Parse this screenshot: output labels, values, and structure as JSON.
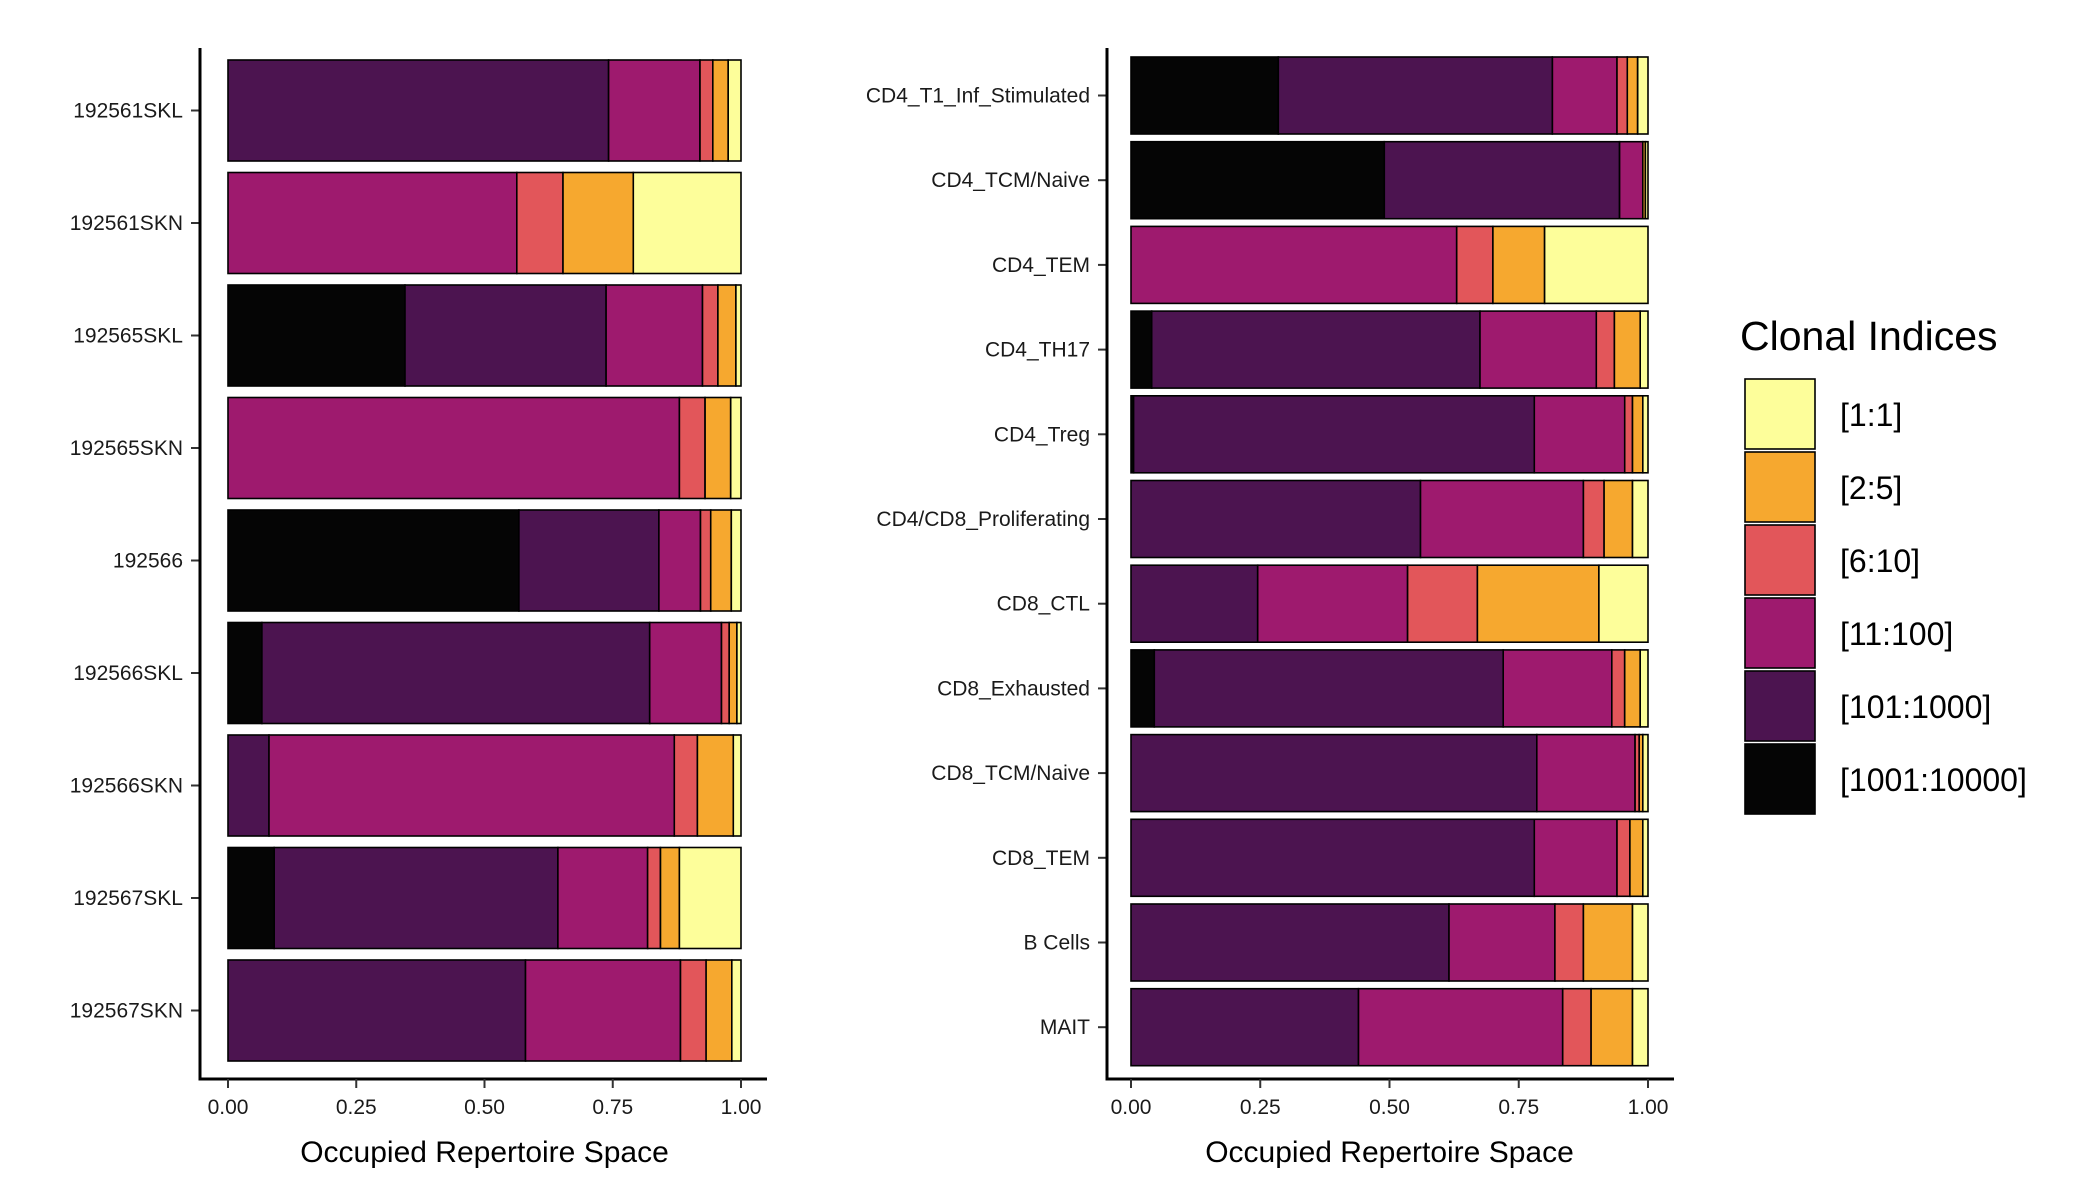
{
  "colors": {
    "[1:1]": "#FDFE9A",
    "[2:5]": "#F6A82F",
    "[6:10]": "#E2565A",
    "[11:100]": "#9E1A6E",
    "[101:1000]": "#4C1450",
    "[1001:10000]": "#050505"
  },
  "legend": {
    "title": "Clonal Indices",
    "items": [
      "[1:1]",
      "[2:5]",
      "[6:10]",
      "[11:100]",
      "[101:1000]",
      "[1001:10000]"
    ]
  },
  "chart_data": [
    {
      "type": "bar",
      "orientation": "horizontal",
      "stacked": true,
      "xlabel": "Occupied Repertoire Space",
      "ylabel": "",
      "xlim": [
        0,
        1
      ],
      "xticks": [
        "0.00",
        "0.25",
        "0.50",
        "0.75",
        "1.00"
      ],
      "categories": [
        "192561SKL",
        "192561SKN",
        "192565SKL",
        "192565SKN",
        "192566",
        "192566SKL",
        "192566SKN",
        "192567SKL",
        "192567SKN"
      ],
      "series": [
        {
          "name": "[1001:10000]",
          "values": [
            0.0,
            0.0,
            0.345,
            0.0,
            0.567,
            0.066,
            0.0,
            0.09,
            0.0
          ]
        },
        {
          "name": "[101:1000]",
          "values": [
            0.742,
            0.0,
            0.392,
            0.0,
            0.273,
            0.756,
            0.08,
            0.553,
            0.58
          ]
        },
        {
          "name": "[11:100]",
          "values": [
            0.178,
            0.563,
            0.188,
            0.88,
            0.081,
            0.14,
            0.79,
            0.175,
            0.302
          ]
        },
        {
          "name": "[6:10]",
          "values": [
            0.025,
            0.09,
            0.03,
            0.05,
            0.02,
            0.015,
            0.045,
            0.025,
            0.05
          ]
        },
        {
          "name": "[2:5]",
          "values": [
            0.03,
            0.137,
            0.035,
            0.05,
            0.04,
            0.015,
            0.07,
            0.037,
            0.05
          ]
        },
        {
          "name": "[1:1]",
          "values": [
            0.025,
            0.21,
            0.01,
            0.02,
            0.019,
            0.008,
            0.015,
            0.12,
            0.018
          ]
        }
      ]
    },
    {
      "type": "bar",
      "orientation": "horizontal",
      "stacked": true,
      "xlabel": "Occupied Repertoire Space",
      "ylabel": "",
      "xlim": [
        0,
        1
      ],
      "xticks": [
        "0.00",
        "0.25",
        "0.50",
        "0.75",
        "1.00"
      ],
      "categories": [
        "CD4_T1_Inf_Stimulated",
        "CD4_TCM/Naive",
        "CD4_TEM",
        "CD4_TH17",
        "CD4_Treg",
        "CD4/CD8_Proliferating",
        "CD8_CTL",
        "CD8_Exhausted",
        "CD8_TCM/Naive",
        "CD8_TEM",
        "B Cells",
        "MAIT"
      ],
      "series": [
        {
          "name": "[1001:10000]",
          "values": [
            0.285,
            0.49,
            0.0,
            0.04,
            0.005,
            0.0,
            0.0,
            0.045,
            0.0,
            0.0,
            0.0,
            0.0
          ]
        },
        {
          "name": "[101:1000]",
          "values": [
            0.53,
            0.455,
            0.0,
            0.635,
            0.775,
            0.56,
            0.245,
            0.675,
            0.785,
            0.78,
            0.615,
            0.44
          ]
        },
        {
          "name": "[11:100]",
          "values": [
            0.125,
            0.045,
            0.63,
            0.225,
            0.175,
            0.315,
            0.29,
            0.21,
            0.19,
            0.16,
            0.205,
            0.395
          ]
        },
        {
          "name": "[6:10]",
          "values": [
            0.02,
            0.0,
            0.07,
            0.035,
            0.015,
            0.04,
            0.135,
            0.025,
            0.008,
            0.025,
            0.055,
            0.055
          ]
        },
        {
          "name": "[2:5]",
          "values": [
            0.02,
            0.005,
            0.1,
            0.05,
            0.02,
            0.055,
            0.235,
            0.03,
            0.007,
            0.025,
            0.095,
            0.08
          ]
        },
        {
          "name": "[1:1]",
          "values": [
            0.02,
            0.005,
            0.2,
            0.015,
            0.01,
            0.03,
            0.095,
            0.015,
            0.01,
            0.01,
            0.03,
            0.03
          ]
        }
      ]
    }
  ]
}
